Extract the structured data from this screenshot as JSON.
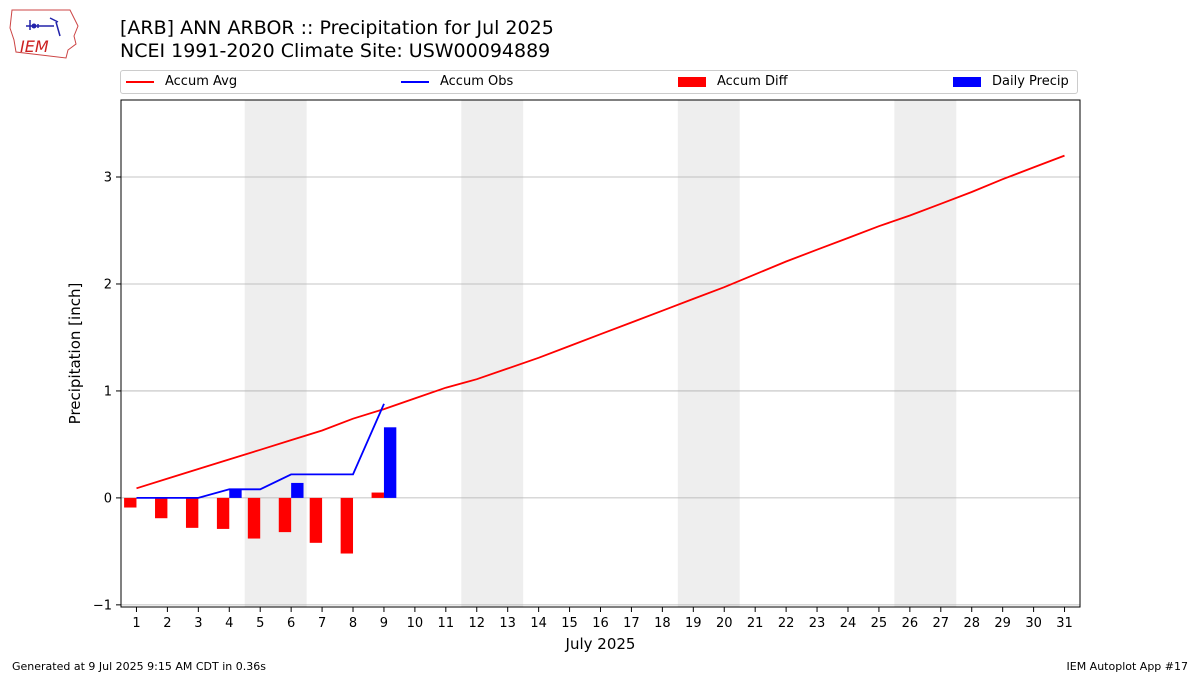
{
  "title": "[ARB] ANN ARBOR :: Precipitation for Jul 2025",
  "subtitle": "NCEI 1991-2020 Climate Site: USW00094889",
  "logo_text": "IEM",
  "footer_left": "Generated at 9 Jul 2025 9:15 AM CDT in 0.36s",
  "footer_right": "IEM Autoplot App #17",
  "colors": {
    "avg": "#ff0000",
    "obs": "#0000ff",
    "diff": "#ff0000",
    "daily": "#0000ff",
    "weekend": "#eeeeee",
    "grid": "#b0b0b0"
  },
  "chart_data": {
    "type": "bar",
    "xlabel": "July 2025",
    "ylabel": "Precipitation [inch]",
    "xlim": [
      0.5,
      31.5
    ],
    "ylim": [
      -1.02,
      3.72
    ],
    "yticks": [
      -1,
      0,
      1,
      2,
      3
    ],
    "ytick_labels": [
      "−1",
      "0",
      "1",
      "2",
      "3"
    ],
    "x": [
      1,
      2,
      3,
      4,
      5,
      6,
      7,
      8,
      9,
      10,
      11,
      12,
      13,
      14,
      15,
      16,
      17,
      18,
      19,
      20,
      21,
      22,
      23,
      24,
      25,
      26,
      27,
      28,
      29,
      30,
      31
    ],
    "x_labels": [
      "1",
      "2",
      "3",
      "4",
      "5",
      "6",
      "7",
      "8",
      "9",
      "10",
      "11",
      "12",
      "13",
      "14",
      "15",
      "16",
      "17",
      "18",
      "19",
      "20",
      "21",
      "22",
      "23",
      "24",
      "25",
      "26",
      "27",
      "28",
      "29",
      "30",
      "31"
    ],
    "weekend_days": [
      5,
      6,
      12,
      13,
      19,
      20,
      26,
      27
    ],
    "grid": "y",
    "legend_position": "top",
    "series": [
      {
        "name": "Accum Avg",
        "kind": "line",
        "x": [
          1,
          2,
          3,
          4,
          5,
          6,
          7,
          8,
          9,
          10,
          11,
          12,
          13,
          14,
          15,
          16,
          17,
          18,
          19,
          20,
          21,
          22,
          23,
          24,
          25,
          26,
          27,
          28,
          29,
          30,
          31
        ],
        "values": [
          0.09,
          0.18,
          0.27,
          0.36,
          0.45,
          0.54,
          0.63,
          0.74,
          0.83,
          0.93,
          1.03,
          1.11,
          1.21,
          1.31,
          1.42,
          1.53,
          1.64,
          1.75,
          1.86,
          1.97,
          2.09,
          2.21,
          2.32,
          2.43,
          2.54,
          2.64,
          2.75,
          2.86,
          2.98,
          3.09,
          3.2
        ]
      },
      {
        "name": "Accum Obs",
        "kind": "line",
        "x": [
          1,
          2,
          3,
          4,
          5,
          6,
          7,
          8,
          9
        ],
        "values": [
          0.0,
          0.0,
          0.0,
          0.08,
          0.08,
          0.22,
          0.22,
          0.22,
          0.88
        ]
      },
      {
        "name": "Accum Diff",
        "kind": "bar",
        "x": [
          1,
          2,
          3,
          4,
          5,
          6,
          7,
          8,
          9
        ],
        "values": [
          -0.09,
          -0.19,
          -0.28,
          -0.29,
          -0.38,
          -0.32,
          -0.42,
          -0.52,
          0.05
        ]
      },
      {
        "name": "Daily Precip",
        "kind": "bar",
        "x": [
          4,
          6,
          9
        ],
        "values": [
          0.08,
          0.14,
          0.66
        ]
      }
    ]
  }
}
